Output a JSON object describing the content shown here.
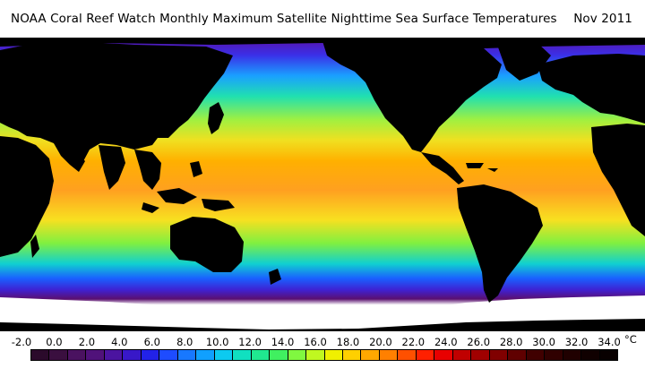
{
  "header": {
    "title": "NOAA Coral Reef Watch Monthly Maximum Satellite Nighttime Sea Surface Temperatures",
    "date": "Nov 2011"
  },
  "legend": {
    "unit": "°C",
    "ticks": [
      "-2.0",
      "0.0",
      "2.0",
      "4.0",
      "6.0",
      "8.0",
      "10.0",
      "12.0",
      "14.0",
      "16.0",
      "18.0",
      "20.0",
      "22.0",
      "24.0",
      "26.0",
      "28.0",
      "30.0",
      "32.0",
      "34.0"
    ],
    "colors": [
      "#2b0a2b",
      "#3a0f3f",
      "#4a1260",
      "#50127a",
      "#4b14a0",
      "#3818c8",
      "#2222e8",
      "#1e4cff",
      "#1878ff",
      "#10a0ff",
      "#0ccaf0",
      "#10e0c0",
      "#20e890",
      "#40f060",
      "#80f840",
      "#c0f820",
      "#f0f000",
      "#ffd000",
      "#ffa800",
      "#ff8000",
      "#ff5000",
      "#ff2000",
      "#e80000",
      "#c00000",
      "#a00000",
      "#800000",
      "#600000",
      "#400000",
      "#300000",
      "#200000",
      "#100000",
      "#080000"
    ]
  },
  "map": {
    "land_color": "#000000",
    "ice_color": "#ffffff"
  }
}
